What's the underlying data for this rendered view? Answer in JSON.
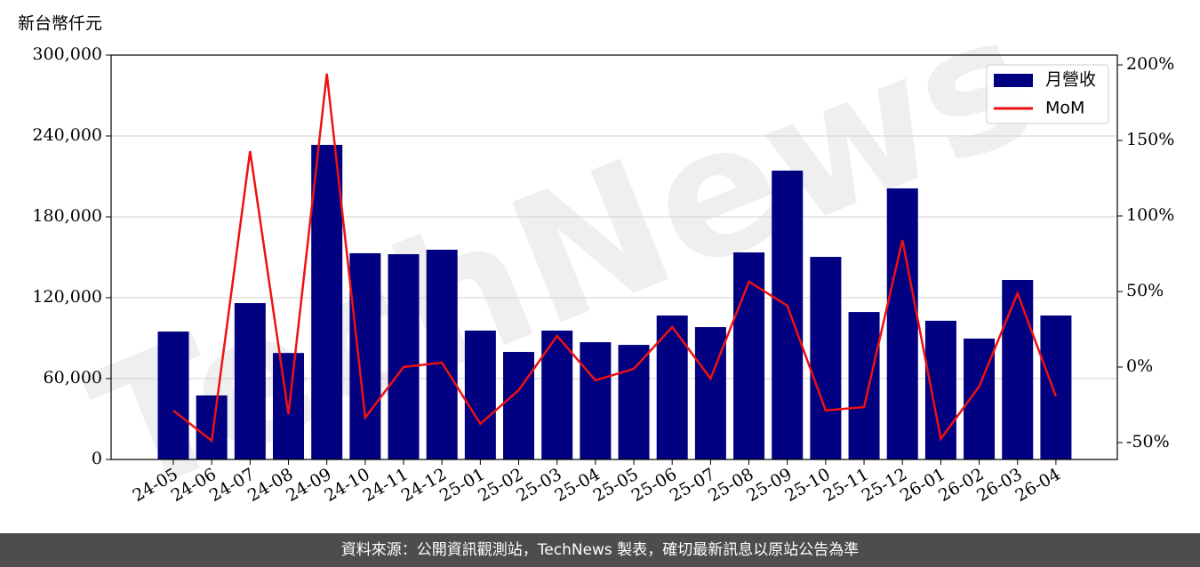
{
  "chart_data": {
    "type": "bar_line",
    "y_axis_label": "新台幣仟元",
    "watermark": "TechNews",
    "categories": [
      "24-05",
      "24-06",
      "24-07",
      "24-08",
      "24-09",
      "24-10",
      "24-11",
      "24-12",
      "25-01",
      "25-02",
      "25-03",
      "25-04",
      "25-05",
      "25-06",
      "25-07",
      "25-08",
      "25-09",
      "25-10",
      "25-11",
      "25-12",
      "26-01",
      "26-02",
      "26-03",
      "26-04"
    ],
    "series": [
      {
        "name": "月營收",
        "color": "#000080",
        "kind": "bar",
        "values": [
          94900,
          47500,
          116000,
          79000,
          233400,
          153000,
          152300,
          155600,
          95600,
          79800,
          95600,
          87000,
          85000,
          106800,
          98200,
          153600,
          214300,
          150300,
          109400,
          201100,
          102900,
          89700,
          133200,
          106800
        ]
      },
      {
        "name": "MoM",
        "color": "#ee1111",
        "kind": "line",
        "axis": "y2",
        "values": [
          -28.8,
          -48.8,
          142.9,
          -31.2,
          194.1,
          -33.5,
          0,
          2.9,
          -37.6,
          -15.3,
          20.6,
          -8.8,
          -1.2,
          26.5,
          -7.6,
          56.5,
          40.6,
          -28.8,
          -26.5,
          84.1,
          -47.6,
          -12.9,
          48.8,
          -19.4
        ]
      }
    ],
    "ylim": [
      0,
      300000
    ],
    "yticks": [
      {
        "value": 0,
        "label": "0"
      },
      {
        "value": 60000,
        "label": "60,000"
      },
      {
        "value": 120000,
        "label": "120,000"
      },
      {
        "value": 180000,
        "label": "180,000"
      },
      {
        "value": 240000,
        "label": "240,000"
      },
      {
        "value": 300000,
        "label": "300,000"
      }
    ],
    "y2lim": [
      -61.2,
      206.5
    ],
    "y2ticks": [
      {
        "value": -50,
        "label": "-50%"
      },
      {
        "value": 0,
        "label": "0%"
      },
      {
        "value": 50,
        "label": "50%"
      },
      {
        "value": 100,
        "label": "100%"
      },
      {
        "value": 150,
        "label": "150%"
      },
      {
        "value": 200,
        "label": "200%"
      }
    ],
    "grid": true,
    "legend": "upper right",
    "source": "資料來源：公開資訊觀測站，TechNews 製表，確切最新訊息以原站公告為準"
  }
}
